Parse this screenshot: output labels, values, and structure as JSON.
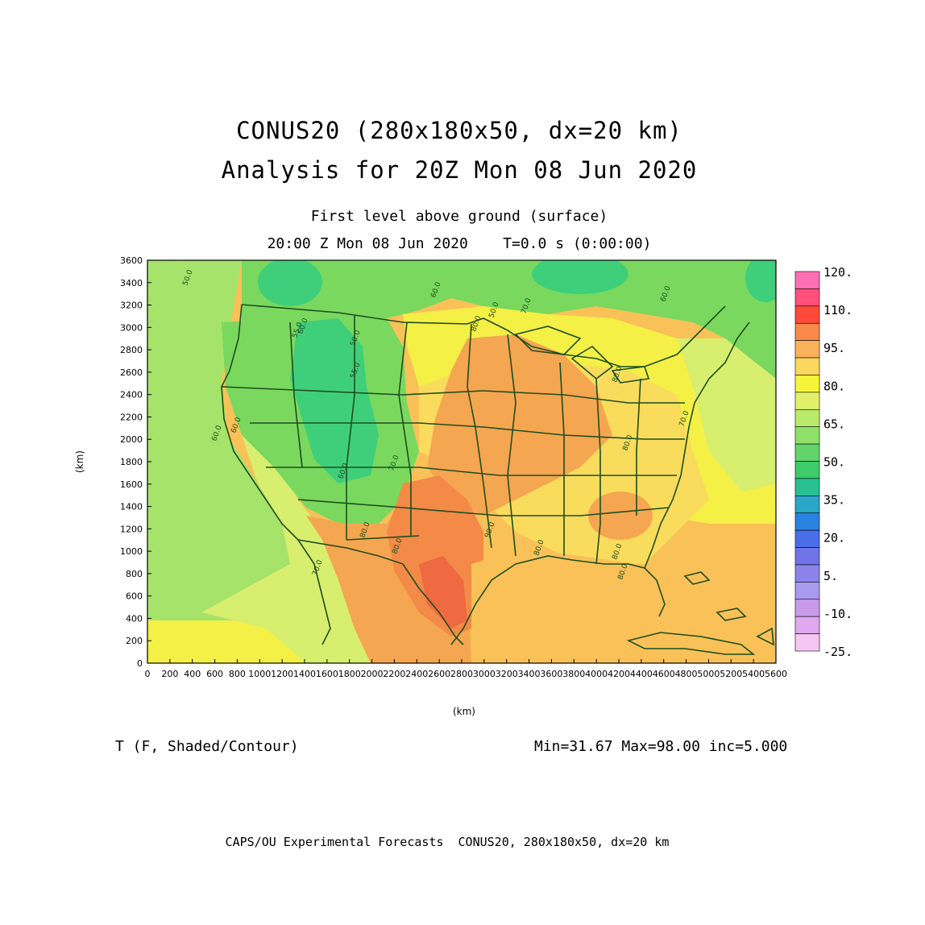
{
  "title": {
    "line1": "CONUS20 (280x180x50, dx=20 km)",
    "line2": "Analysis for 20Z Mon 08 Jun 2020"
  },
  "subtitle": {
    "level": "First level above ground (surface)",
    "time": "20:00 Z Mon 08 Jun 2020    T=0.0 s (0:00:00)"
  },
  "axes": {
    "xlabel": "(km)",
    "ylabel": "(km)",
    "x_ticks": [
      "0",
      "200",
      "400",
      "600",
      "800",
      "1000",
      "1200",
      "1400",
      "1600",
      "1800",
      "2000",
      "2200",
      "2400",
      "2600",
      "2800",
      "3000",
      "3200",
      "3400",
      "3600",
      "3800",
      "4000",
      "4200",
      "4400",
      "4600",
      "4800",
      "5000",
      "5200",
      "5400",
      "5600"
    ],
    "y_ticks": [
      "0",
      "200",
      "400",
      "600",
      "800",
      "1000",
      "1200",
      "1400",
      "1600",
      "1800",
      "2000",
      "2200",
      "2400",
      "2600",
      "2800",
      "3000",
      "3200",
      "3400",
      "3600"
    ],
    "x_range": [
      0,
      5600
    ],
    "y_range": [
      0,
      3600
    ]
  },
  "colorbar": {
    "labels": [
      "120.",
      "110.",
      "95.",
      "80.",
      "65.",
      "50.",
      "35.",
      "20.",
      "5.",
      "-10.",
      "-25."
    ],
    "colors": [
      "#ff6fb4",
      "#ff4f7a",
      "#ff4a3a",
      "#f98a4a",
      "#f9b25a",
      "#fbd75e",
      "#f7f43a",
      "#e0f06a",
      "#b9ea6a",
      "#8fe06a",
      "#63d46a",
      "#3ccc6a",
      "#28c090",
      "#2aa6c8",
      "#2a82e0",
      "#4a6ee8",
      "#6f74e8",
      "#8a84ea",
      "#a89aee",
      "#c89aea",
      "#e0a8ee",
      "#f6c6f2"
    ]
  },
  "map": {
    "contour_labels": [
      "50.0",
      "60.0",
      "50.0",
      "50.0",
      "60.0",
      "60.0",
      "70.0",
      "80.0",
      "55.0",
      "55.0",
      "60.0",
      "60.0",
      "60.0",
      "70.0",
      "80.0",
      "80.0",
      "90.0",
      "80.0",
      "80.0",
      "80.0",
      "80.0",
      "70.0",
      "70.0",
      "80.0"
    ],
    "colors": {
      "ocean_pacific": "#a6e36a",
      "cool_green": "#7ad85e",
      "cold_teal": "#3fcf7a",
      "mild_yellowgreen": "#d8ee6e",
      "yellow": "#f4f046",
      "warm_yellow": "#f9dc5c",
      "orange_light": "#f9c158",
      "orange": "#f5a650",
      "hot_orange": "#f38a48",
      "hottest": "#ef6a40",
      "contour_line": "#1e4d1e"
    }
  },
  "footer": {
    "field": "T (F, Shaded/Contour)",
    "stats": "Min=31.67 Max=98.00 inc=5.000",
    "credit": "CAPS/OU Experimental Forecasts  CONUS20, 280x180x50, dx=20 km"
  }
}
